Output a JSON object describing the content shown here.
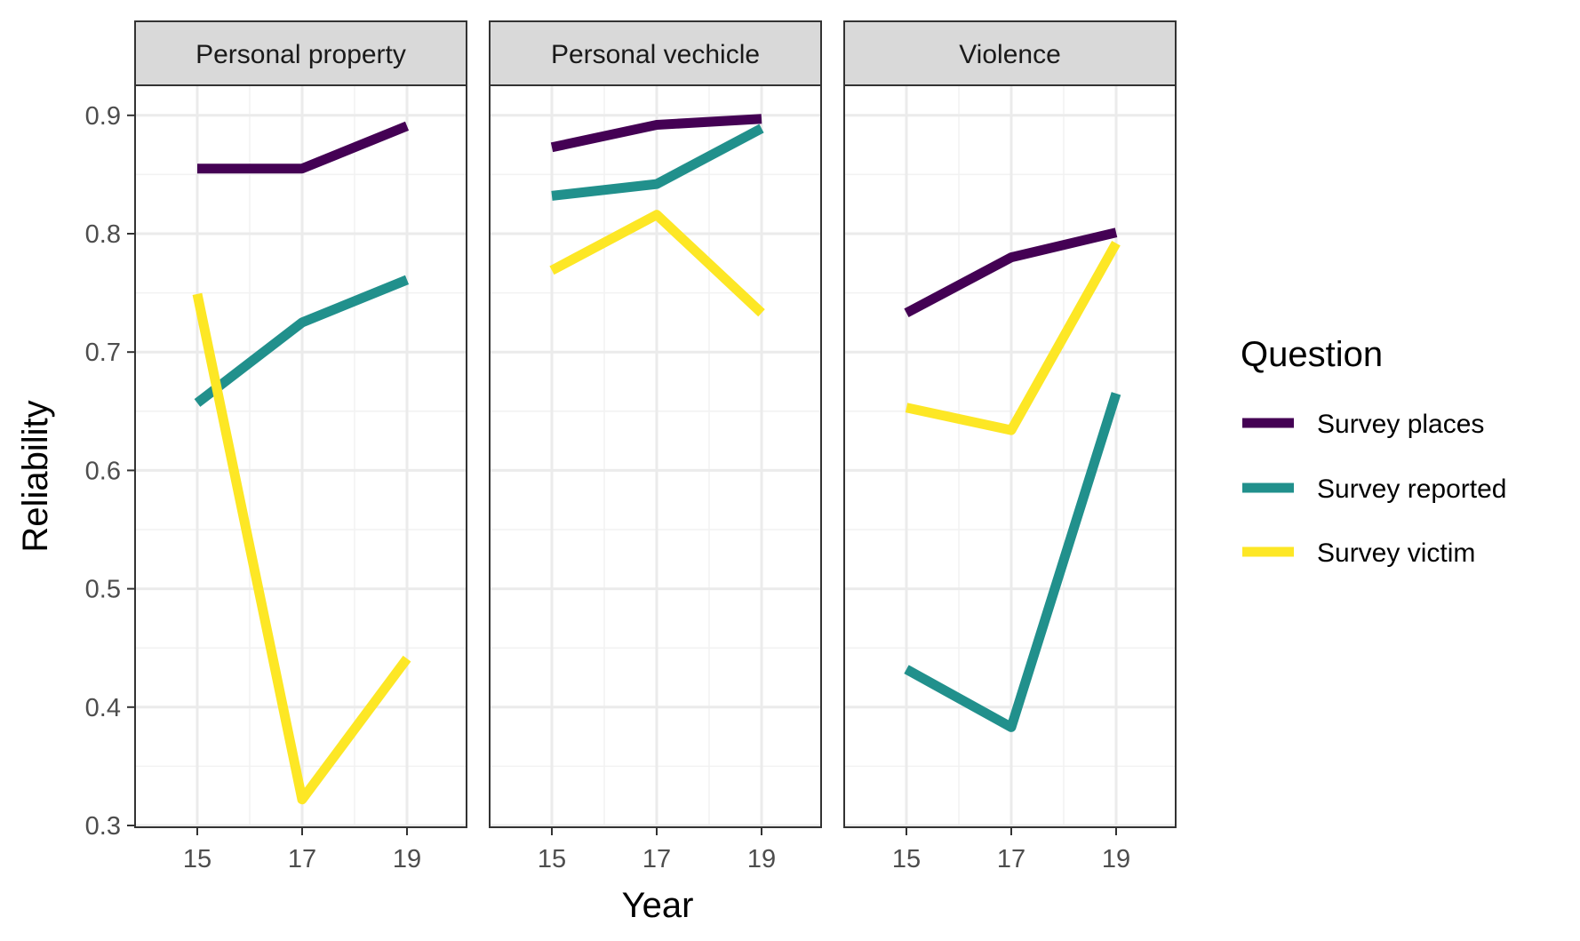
{
  "chart_data": {
    "type": "line",
    "xlabel": "Year",
    "ylabel": "Reliability",
    "ylim": [
      0.3,
      0.92
    ],
    "yticks": [
      "0.3",
      "0.4",
      "0.5",
      "0.6",
      "0.7",
      "0.8",
      "0.9"
    ],
    "xticks": [
      "15",
      "17",
      "19"
    ],
    "x": [
      15,
      17,
      19
    ],
    "grid": true,
    "legend": {
      "title": "Question",
      "placement": "right",
      "entries": [
        "Survey places",
        "Survey reported",
        "Survey victim"
      ]
    },
    "colors": {
      "Survey places": "#440154",
      "Survey reported": "#21908C",
      "Survey victim": "#FDE725"
    },
    "panels": [
      {
        "title": "Personal property",
        "series": [
          {
            "name": "Survey places",
            "values": [
              0.855,
              0.855,
              0.891
            ]
          },
          {
            "name": "Survey reported",
            "values": [
              0.657,
              0.725,
              0.761
            ]
          },
          {
            "name": "Survey victim",
            "values": [
              0.749,
              0.322,
              0.441
            ]
          }
        ]
      },
      {
        "title": "Personal vechicle",
        "series": [
          {
            "name": "Survey places",
            "values": [
              0.873,
              0.892,
              0.897
            ]
          },
          {
            "name": "Survey reported",
            "values": [
              0.832,
              0.842,
              0.889
            ]
          },
          {
            "name": "Survey victim",
            "values": [
              0.769,
              0.816,
              0.733
            ]
          }
        ]
      },
      {
        "title": "Violence",
        "series": [
          {
            "name": "Survey places",
            "values": [
              0.733,
              0.78,
              0.801
            ]
          },
          {
            "name": "Survey reported",
            "values": [
              0.432,
              0.383,
              0.665
            ]
          },
          {
            "name": "Survey victim",
            "values": [
              0.653,
              0.634,
              0.792
            ]
          }
        ]
      }
    ]
  }
}
